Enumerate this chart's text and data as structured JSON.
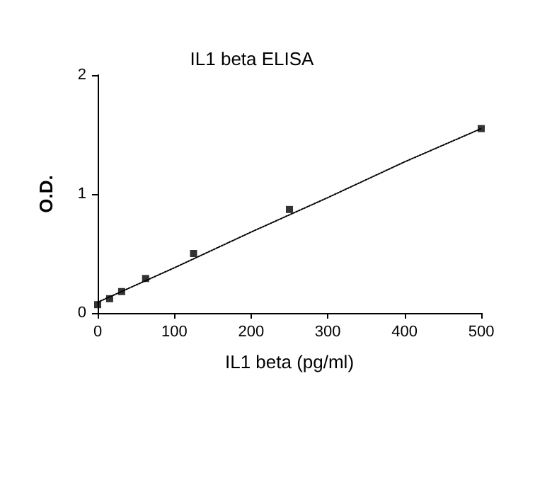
{
  "chart_data": {
    "type": "scatter",
    "title": "IL1 beta ELISA",
    "xlabel": "IL1 beta (pg/ml)",
    "ylabel": "O.D.",
    "xlim": [
      0,
      500
    ],
    "xticks": [
      0,
      100,
      200,
      300,
      400,
      500
    ],
    "ylim": [
      0,
      2
    ],
    "yticks": [
      0,
      1,
      2
    ],
    "grid": false,
    "marker": "square",
    "series": [
      {
        "color": "#000000",
        "x": [
          0,
          15.6,
          31.25,
          62.5,
          125,
          250,
          500
        ],
        "values": [
          0.07,
          0.12,
          0.18,
          0.29,
          0.5,
          0.87,
          1.55
        ]
      },
      {
        "type": "line",
        "line_style": "dotted",
        "marker": "none",
        "color": "#000000",
        "x": [
          0,
          100,
          200,
          300,
          400,
          500
        ],
        "values": [
          0.09,
          0.38,
          0.68,
          0.97,
          1.27,
          1.55
        ]
      }
    ]
  }
}
